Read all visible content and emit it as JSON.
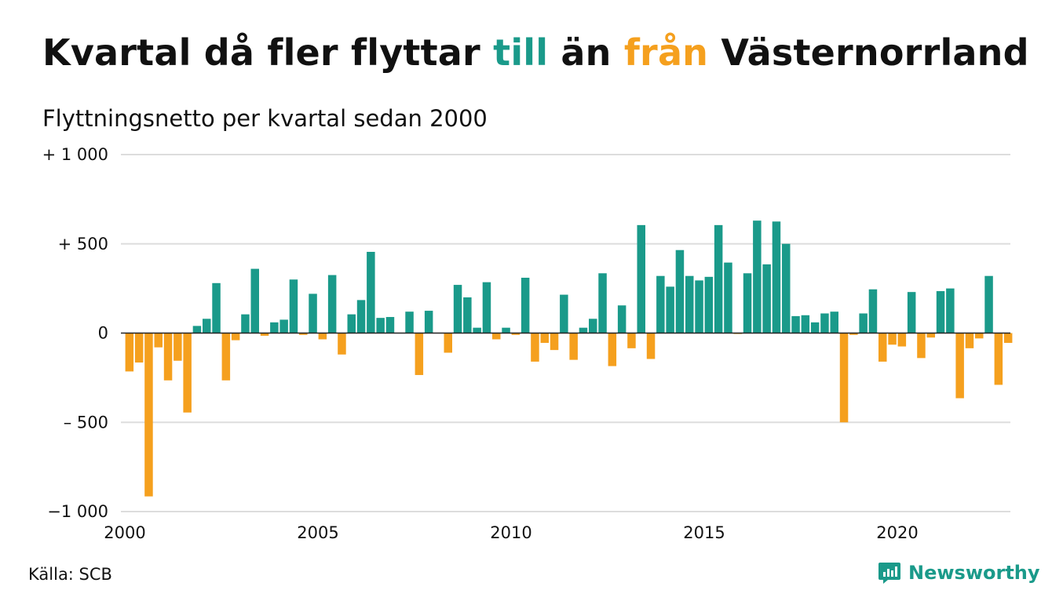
{
  "header": {
    "title_part1": "Kvartal då fler flyttar ",
    "title_till": "till",
    "title_mid": " än ",
    "title_fran": "från",
    "title_end": " Västernorrland",
    "subtitle": "Flyttningsnetto per kvartal sedan 2000"
  },
  "footer": {
    "source": "Källa: SCB",
    "brand": "Newsworthy"
  },
  "colors": {
    "positive": "#1a9a8a",
    "negative": "#f5a01e",
    "grid": "#dddddd",
    "axis": "#222222"
  },
  "chart_data": {
    "type": "bar",
    "x_start": "2000 Q1",
    "x_ticks": [
      "2000",
      "2005",
      "2010",
      "2015",
      "2020"
    ],
    "y_ticks": [
      "+ 1 000",
      "+   500",
      "0",
      "–  500",
      "−1 000"
    ],
    "ylim": [
      -1000,
      1000
    ],
    "grid": true,
    "values": [
      -215,
      -165,
      -915,
      -80,
      -265,
      -155,
      -445,
      40,
      80,
      280,
      -265,
      -40,
      105,
      360,
      -15,
      60,
      75,
      300,
      -10,
      220,
      -35,
      325,
      -120,
      105,
      185,
      455,
      85,
      90,
      0,
      120,
      -235,
      125,
      0,
      -110,
      270,
      200,
      30,
      285,
      -35,
      30,
      -10,
      310,
      -160,
      -55,
      -95,
      215,
      -150,
      30,
      80,
      335,
      -185,
      155,
      -85,
      605,
      -145,
      320,
      260,
      465,
      320,
      295,
      315,
      605,
      395,
      -5,
      335,
      630,
      385,
      625,
      500,
      95,
      100,
      60,
      110,
      120,
      -500,
      -10,
      110,
      245,
      -160,
      -65,
      -75,
      230,
      -140,
      -25,
      235,
      250,
      -365,
      -85,
      -30,
      320,
      -290,
      -55
    ]
  }
}
